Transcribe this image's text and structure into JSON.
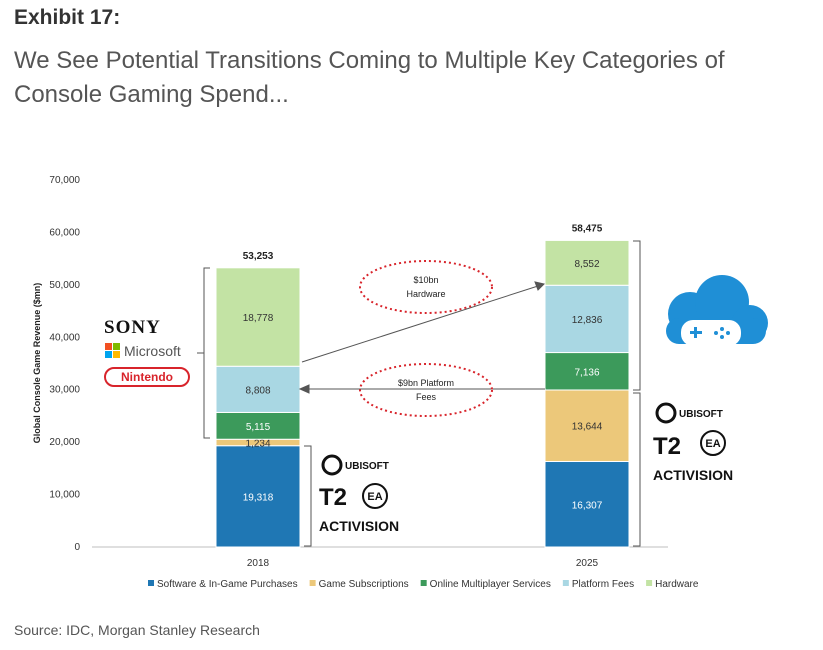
{
  "header": {
    "exhibit": "Exhibit 17:",
    "subtitle": "We See Potential Transitions Coming to Multiple Key Categories of Console Gaming Spend..."
  },
  "source": "Source: IDC, Morgan Stanley Research",
  "chart_data": {
    "type": "bar",
    "stacked": true,
    "title": "",
    "xlabel": "",
    "ylabel": "Global Console Game Revenue ($mn)",
    "ylim": [
      0,
      70000
    ],
    "yticks": [
      0,
      10000,
      20000,
      30000,
      40000,
      50000,
      60000,
      70000
    ],
    "ytick_labels": [
      "0",
      "10,000",
      "20,000",
      "30,000",
      "40,000",
      "50,000",
      "60,000",
      "70,000"
    ],
    "categories": [
      "2018",
      "2025"
    ],
    "series": [
      {
        "name": "Software & In-Game Purchases",
        "color": "#1f77b4",
        "values": [
          19318,
          16307
        ],
        "labels": [
          "19,318",
          "16,307"
        ],
        "light_text": true
      },
      {
        "name": "Game Subscriptions",
        "color": "#ecc87a",
        "values": [
          1234,
          13644
        ],
        "labels": [
          "1,234",
          "13,644"
        ],
        "light_text": false
      },
      {
        "name": "Online Multiplayer Services",
        "color": "#3c9a5b",
        "values": [
          5115,
          7136
        ],
        "labels": [
          "5,115",
          "7,136"
        ],
        "light_text": true
      },
      {
        "name": "Platform Fees",
        "color": "#a9d7e3",
        "values": [
          8808,
          12836
        ],
        "labels": [
          "8,808",
          "12,836"
        ],
        "light_text": false
      },
      {
        "name": "Hardware",
        "color": "#c3e3a4",
        "values": [
          18778,
          8552
        ],
        "labels": [
          "18,778",
          "8,552"
        ],
        "light_text": false
      }
    ],
    "totals": [
      53253,
      58475
    ],
    "total_labels": [
      "53,253",
      "58,475"
    ],
    "legend_position": "bottom",
    "annotations": [
      {
        "text": [
          "$10bn",
          "Hardware"
        ]
      },
      {
        "text": [
          "$9bn Platform",
          "Fees"
        ]
      }
    ]
  },
  "logos": {
    "sony": "SONY",
    "microsoft": "Microsoft",
    "nintendo": "Nintendo",
    "ubisoft": "UBISOFT",
    "t2": "T2",
    "ea": "EA",
    "activision": "ACTIVISION",
    "nintendo_color": "#d8242b",
    "cloud_color": "#1f8fd6"
  }
}
